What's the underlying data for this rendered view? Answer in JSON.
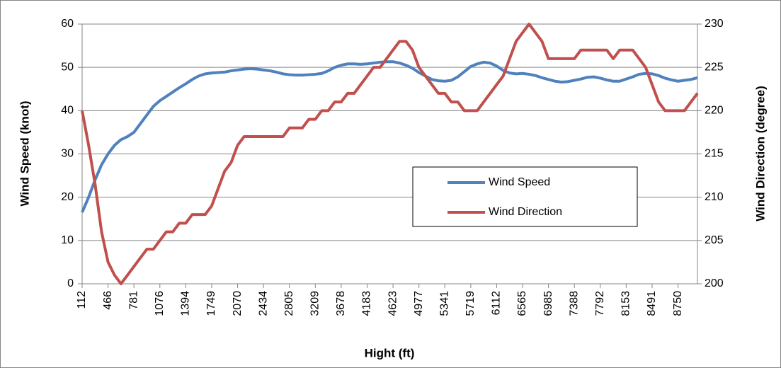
{
  "chart_data": {
    "type": "line",
    "x_label": "Hight (ft)",
    "y_label": "Wind Speed (knot)",
    "y2_label": "Wind Direction (degree)",
    "categories": [
      "112",
      null,
      null,
      null,
      "466",
      null,
      null,
      null,
      "781",
      null,
      null,
      null,
      "1076",
      null,
      null,
      null,
      "1394",
      null,
      null,
      null,
      "1749",
      null,
      null,
      null,
      "2070",
      null,
      null,
      null,
      "2434",
      null,
      null,
      null,
      "2805",
      null,
      null,
      null,
      "3209",
      null,
      null,
      null,
      "3678",
      null,
      null,
      null,
      "4183",
      null,
      null,
      null,
      "4623",
      null,
      null,
      null,
      "4977",
      null,
      null,
      null,
      "5341",
      null,
      null,
      null,
      "5719",
      null,
      null,
      null,
      "6112",
      null,
      null,
      null,
      "6565",
      null,
      null,
      null,
      "6985",
      null,
      null,
      null,
      "7388",
      null,
      null,
      null,
      "7792",
      null,
      null,
      null,
      "8153",
      null,
      null,
      null,
      "8491",
      null,
      null,
      null,
      "8750",
      null,
      null,
      null
    ],
    "series": [
      {
        "name": "Wind Speed",
        "color": "#4f81bd",
        "values": [
          16.5,
          20,
          24,
          27.5,
          30,
          32,
          33.3,
          34,
          35,
          37,
          39,
          41,
          42.3,
          43.3,
          44.3,
          45.3,
          46.2,
          47.2,
          48,
          48.5,
          48.7,
          48.8,
          48.9,
          49.2,
          49.4,
          49.6,
          49.7,
          49.6,
          49.4,
          49.2,
          48.9,
          48.5,
          48.3,
          48.2,
          48.2,
          48.3,
          48.4,
          48.6,
          49.2,
          50,
          50.5,
          50.8,
          50.8,
          50.7,
          50.8,
          51,
          51.2,
          51.3,
          51.3,
          51,
          50.5,
          49.8,
          48.8,
          48,
          47.2,
          46.9,
          46.8,
          47,
          47.8,
          49,
          50.2,
          50.8,
          51.2,
          51,
          50.3,
          49.3,
          48.7,
          48.5,
          48.6,
          48.4,
          48.1,
          47.6,
          47.2,
          46.8,
          46.6,
          46.7,
          47,
          47.3,
          47.7,
          47.8,
          47.5,
          47.1,
          46.8,
          46.8,
          47.3,
          47.8,
          48.4,
          48.6,
          48.5,
          48.1,
          47.5,
          47.1,
          46.8,
          47,
          47.2,
          47.6
        ]
      },
      {
        "name": "Wind Direction",
        "color": "#c0504d",
        "axis": "y2",
        "values": [
          220,
          216,
          211.5,
          206,
          202.5,
          201,
          200,
          201,
          202,
          203,
          204,
          204,
          205,
          206,
          206,
          207,
          207,
          208,
          208,
          208,
          209,
          211,
          213,
          214,
          216,
          217,
          217,
          217,
          217,
          217,
          217,
          217,
          218,
          218,
          218,
          219,
          219,
          220,
          220,
          221,
          221,
          222,
          222,
          223,
          224,
          225,
          225,
          226,
          227,
          228,
          228,
          227,
          225,
          224,
          223,
          222,
          222,
          221,
          221,
          220,
          220,
          220,
          221,
          222,
          223,
          224,
          226,
          228,
          229,
          230,
          229,
          228,
          226,
          226,
          226,
          226,
          226,
          227,
          227,
          227,
          227,
          227,
          226,
          227,
          227,
          227,
          226,
          225,
          223,
          221,
          220,
          220,
          220,
          220,
          221,
          222
        ]
      }
    ],
    "ylim": [
      0,
      60
    ],
    "yticks": [
      0,
      10,
      20,
      30,
      40,
      50,
      60
    ],
    "y2lim": [
      200,
      230
    ],
    "y2ticks": [
      200,
      205,
      210,
      215,
      220,
      225,
      230
    ],
    "grid": true
  }
}
